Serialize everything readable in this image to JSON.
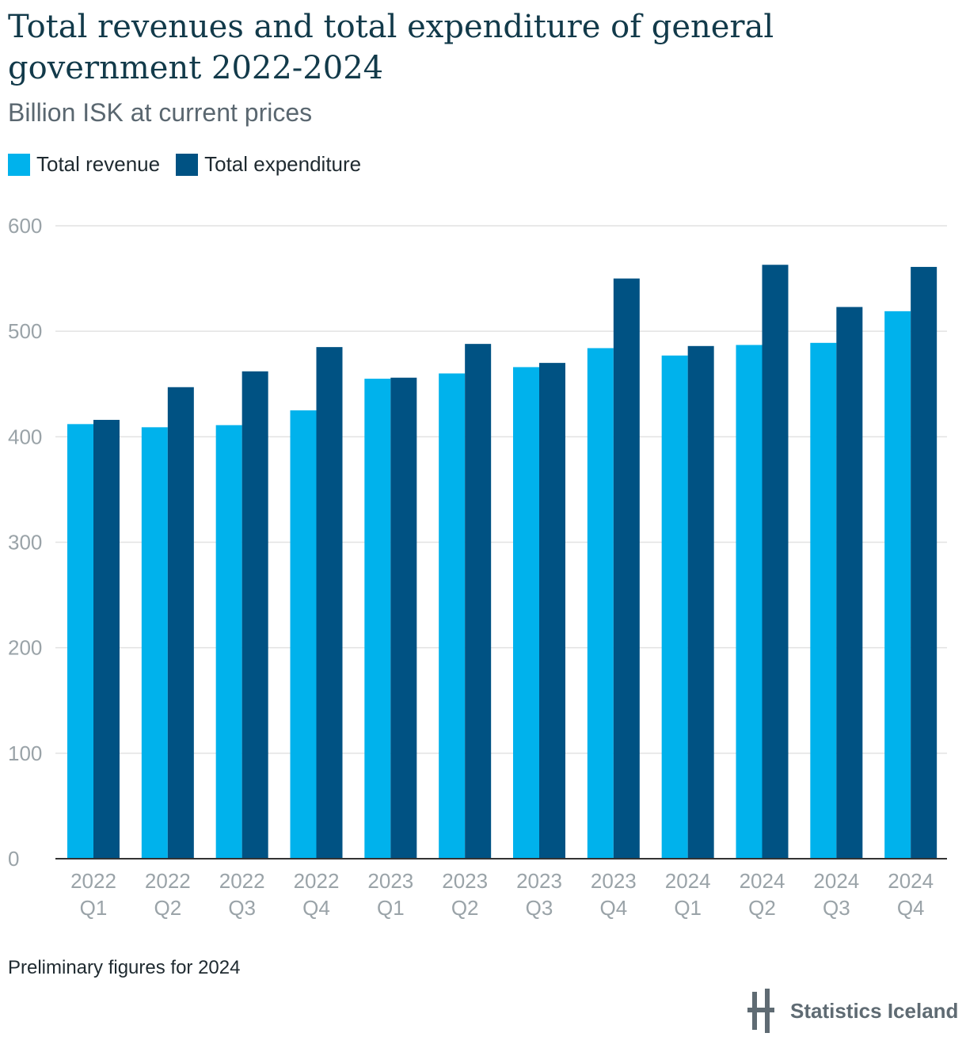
{
  "title": "Total revenues and total expenditure of general government 2022-2024",
  "subtitle": "Billion ISK at current prices",
  "legend": {
    "revenue_label": "Total revenue",
    "expenditure_label": "Total expenditure"
  },
  "colors": {
    "revenue": "#00b2ec",
    "expenditure": "#005283",
    "grid": "#e2e2e2",
    "axis": "#333333"
  },
  "footnote": "Preliminary figures for 2024",
  "logo": {
    "text": "Statistics Iceland",
    "icon": "statistics-iceland-logo-icon"
  },
  "chart_data": {
    "type": "bar",
    "title": "Total revenues and total expenditure of general government 2022-2024",
    "subtitle": "Billion ISK at current prices",
    "xlabel": "",
    "ylabel": "",
    "categories": [
      [
        "2022",
        "Q1"
      ],
      [
        "2022",
        "Q2"
      ],
      [
        "2022",
        "Q3"
      ],
      [
        "2022",
        "Q4"
      ],
      [
        "2023",
        "Q1"
      ],
      [
        "2023",
        "Q2"
      ],
      [
        "2023",
        "Q3"
      ],
      [
        "2023",
        "Q4"
      ],
      [
        "2024",
        "Q1"
      ],
      [
        "2024",
        "Q2"
      ],
      [
        "2024",
        "Q3"
      ],
      [
        "2024",
        "Q4"
      ]
    ],
    "series": [
      {
        "name": "Total revenue",
        "values": [
          412,
          409,
          411,
          425,
          455,
          460,
          466,
          484,
          477,
          487,
          489,
          519
        ]
      },
      {
        "name": "Total expenditure",
        "values": [
          416,
          447,
          462,
          485,
          456,
          488,
          470,
          550,
          486,
          563,
          523,
          561
        ]
      }
    ],
    "ylim": [
      0,
      600
    ],
    "yticks": [
      0,
      100,
      200,
      300,
      400,
      500,
      600
    ],
    "grid": true,
    "legend_position": "top-left"
  }
}
